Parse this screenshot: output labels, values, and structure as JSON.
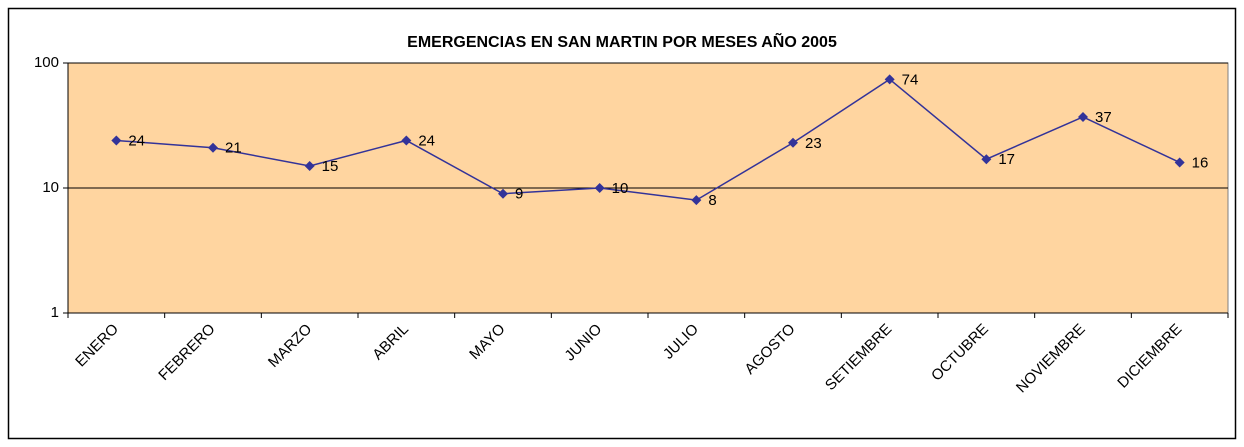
{
  "chart_data": {
    "type": "line",
    "title": "EMERGENCIAS EN SAN MARTIN POR MESES AÑO 2005",
    "categories": [
      "ENERO",
      "FEBRERO",
      "MARZO",
      "ABRIL",
      "MAYO",
      "JUNIO",
      "JULIO",
      "AGOSTO",
      "SETIEMBRE",
      "OCTUBRE",
      "NOVIEMBRE",
      "DICIEMBRE"
    ],
    "values": [
      24,
      21,
      15,
      24,
      9,
      10,
      8,
      23,
      74,
      17,
      37,
      16
    ],
    "color": "#333399",
    "plot_background": "#FFD5A0",
    "ylim": [
      1,
      100
    ],
    "yticks": [
      1,
      10,
      100
    ],
    "log_scale": true,
    "grid": true
  }
}
